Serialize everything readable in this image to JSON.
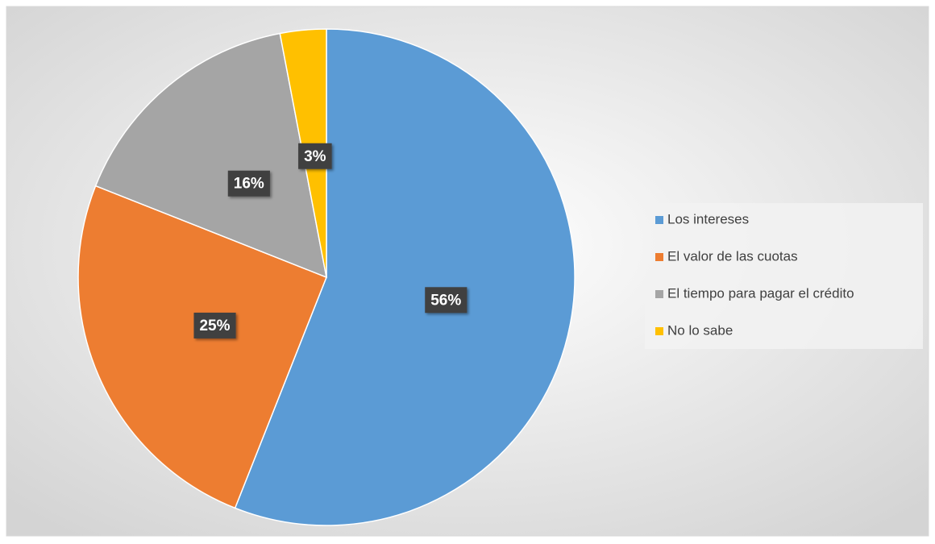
{
  "chart_data": {
    "type": "pie",
    "categories": [
      "Los intereses",
      "El valor de las cuotas",
      "El tiempo para pagar el crédito",
      "No lo sabe"
    ],
    "values": [
      56,
      25,
      16,
      3
    ],
    "value_labels": [
      "56%",
      "25%",
      "16%",
      "3%"
    ],
    "colors": [
      "#5b9bd5",
      "#ed7d31",
      "#a5a5a5",
      "#ffc000"
    ],
    "legend": "right"
  }
}
